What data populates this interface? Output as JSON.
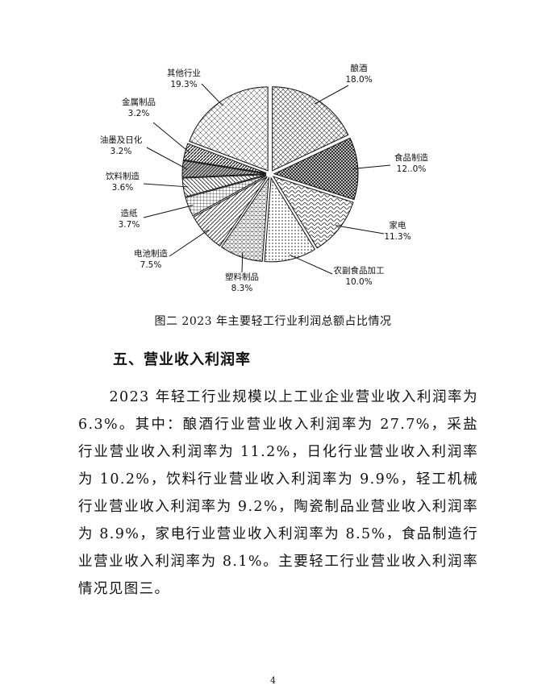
{
  "chart_data": {
    "type": "pie",
    "categories": [
      "酿酒",
      "食品制造",
      "家电",
      "农副食品加工",
      "塑料制品",
      "电池制造",
      "造纸",
      "饮料制造",
      "油墨及日化",
      "金属制品",
      "其他行业"
    ],
    "values": [
      18.0,
      12.0,
      11.3,
      10.0,
      8.3,
      7.5,
      3.7,
      3.6,
      3.2,
      3.2,
      19.3
    ],
    "value_labels": [
      "18.0%",
      "12..0%",
      "11.3%",
      "10.0%",
      "8.3%",
      "7.5%",
      "3.7%",
      "3.6%",
      "3.2%",
      "3.2%",
      "19.3%"
    ],
    "caption": "图二   2023 年主要轻工行业利润总额占比情况"
  },
  "section_heading": "五、营业收入利润率",
  "paragraph": "2023 年轻工行业规模以上工业企业营业收入利润率为 6.3%。其中：酿酒行业营业收入利润率为 27.7%，采盐行业营业收入利润率为 11.2%，日化行业营业收入利润率为 10.2%，饮料行业营业收入利润率为 9.9%，轻工机械行业营业收入利润率为 9.2%，陶瓷制品业营业收入利润率为 8.9%，家电行业营业收入利润率为 8.5%，食品制造行业营业收入利润率为 8.1%。主要轻工行业营业收入利润率情况见图三。",
  "page_number": "4"
}
